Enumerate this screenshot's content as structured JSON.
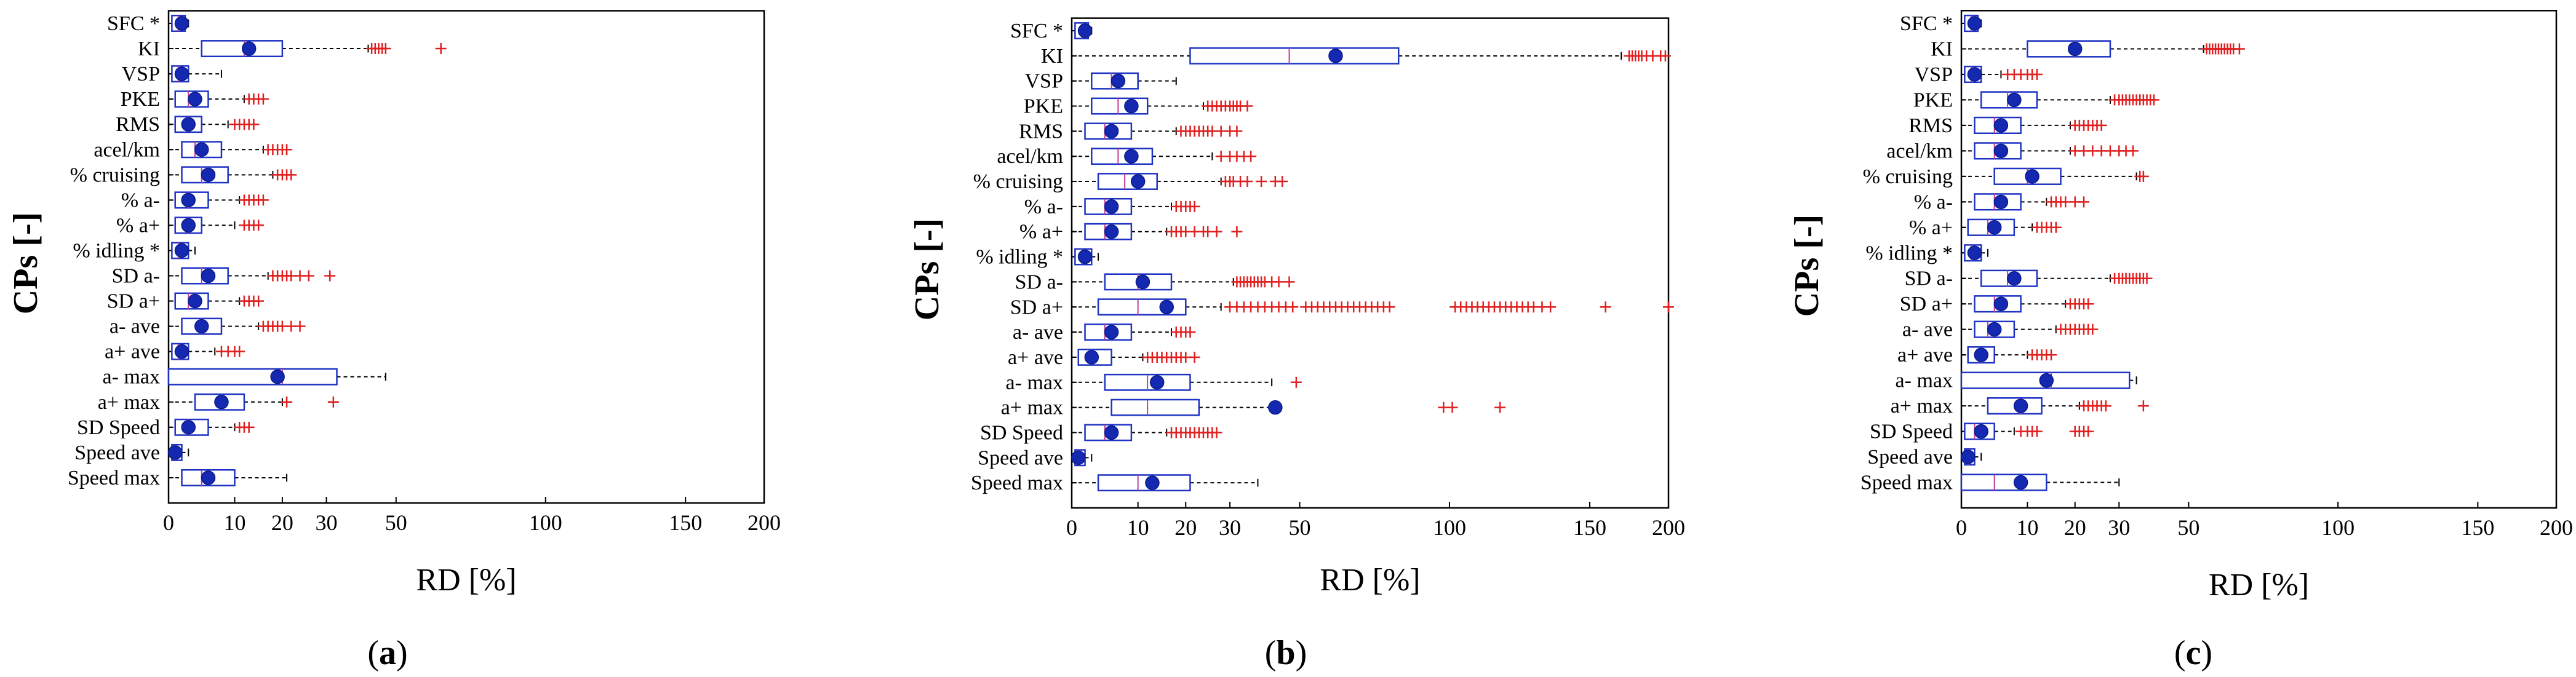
{
  "chart_data": [
    {
      "type": "boxplot",
      "panel_label": "a",
      "ylabel": "CPs [-]",
      "xlabel": "RD [%]",
      "xlim": [
        0,
        200
      ],
      "xticks": [
        0,
        10,
        20,
        30,
        50,
        100,
        150,
        200
      ],
      "categories": [
        "SFC *",
        "KI",
        "VSP",
        "PKE",
        "RMS",
        "acel/km",
        "% cruising",
        "% a-",
        "% a+",
        "% idling *",
        "SD a-",
        "SD a+",
        "a- ave",
        "a+ ave",
        "a- max",
        "a+ max",
        "SD Speed",
        "Speed ave",
        "Speed max"
      ],
      "boxes": [
        {
          "q1": 0.5,
          "med": 1.5,
          "mean": 2,
          "q3": 2.5,
          "wlo": 0,
          "whi": 3,
          "out": []
        },
        {
          "q1": 5,
          "med": 12,
          "mean": 13,
          "q3": 20,
          "wlo": 0,
          "whi": 42,
          "out": [
            43,
            44,
            45,
            46,
            47,
            65
          ]
        },
        {
          "q1": 0.5,
          "med": 1.5,
          "mean": 2,
          "q3": 3,
          "wlo": 0,
          "whi": 8,
          "out": []
        },
        {
          "q1": 1,
          "med": 3,
          "mean": 4,
          "q3": 6,
          "wlo": 0,
          "whi": 12,
          "out": [
            13,
            14,
            15,
            16
          ]
        },
        {
          "q1": 1,
          "med": 3,
          "mean": 3,
          "q3": 5,
          "wlo": 0,
          "whi": 9,
          "out": [
            10,
            11,
            12,
            13,
            14
          ]
        },
        {
          "q1": 2,
          "med": 4,
          "mean": 5,
          "q3": 8,
          "wlo": 0,
          "whi": 16,
          "out": [
            17,
            18,
            19,
            20,
            21
          ]
        },
        {
          "q1": 2,
          "med": 5,
          "mean": 6,
          "q3": 9,
          "wlo": 0,
          "whi": 18,
          "out": [
            19,
            20,
            21,
            22
          ]
        },
        {
          "q1": 1,
          "med": 3,
          "mean": 3,
          "q3": 6,
          "wlo": 0,
          "whi": 11,
          "out": [
            12,
            13,
            14,
            15,
            16
          ]
        },
        {
          "q1": 1,
          "med": 3,
          "mean": 3,
          "q3": 5,
          "wlo": 0,
          "whi": 10,
          "out": [
            12,
            13,
            14,
            15
          ]
        },
        {
          "q1": 0.5,
          "med": 1.5,
          "mean": 2,
          "q3": 3,
          "wlo": 0,
          "whi": 4,
          "out": []
        },
        {
          "q1": 2,
          "med": 5,
          "mean": 6,
          "q3": 9,
          "wlo": 0,
          "whi": 17,
          "out": [
            18,
            19,
            20,
            21,
            22,
            24,
            26,
            31
          ]
        },
        {
          "q1": 1,
          "med": 3,
          "mean": 4,
          "q3": 6,
          "wlo": 0,
          "whi": 11,
          "out": [
            12,
            13,
            14,
            15
          ]
        },
        {
          "q1": 2,
          "med": 5,
          "mean": 5,
          "q3": 8,
          "wlo": 0,
          "whi": 15,
          "out": [
            16,
            17,
            18,
            19,
            20,
            22,
            24
          ]
        },
        {
          "q1": 0.5,
          "med": 1.5,
          "mean": 2,
          "q3": 3,
          "wlo": 0,
          "whi": 7,
          "out": [
            8,
            9,
            10,
            11
          ]
        },
        {
          "q1": 0,
          "med": 20,
          "mean": 19,
          "q3": 33,
          "wlo": 0,
          "whi": 47,
          "out": []
        },
        {
          "q1": 4,
          "med": 8,
          "mean": 8,
          "q3": 12,
          "wlo": 1,
          "whi": 20,
          "out": [
            21,
            32
          ]
        },
        {
          "q1": 1,
          "med": 3,
          "mean": 3,
          "q3": 6,
          "wlo": 0,
          "whi": 10,
          "out": [
            11,
            12,
            13
          ]
        },
        {
          "q1": 0.5,
          "med": 1,
          "mean": 1,
          "q3": 2,
          "wlo": 0,
          "whi": 3,
          "out": []
        },
        {
          "q1": 2,
          "med": 5,
          "mean": 6,
          "q3": 10,
          "wlo": 0,
          "whi": 21,
          "out": []
        }
      ]
    },
    {
      "type": "boxplot",
      "panel_label": "b",
      "ylabel": "CPs [-]",
      "xlabel": "RD [%]",
      "xlim": [
        0,
        200
      ],
      "xticks": [
        0,
        10,
        20,
        30,
        50,
        100,
        150,
        200
      ],
      "categories": [
        "SFC *",
        "KI",
        "VSP",
        "PKE",
        "RMS",
        "acel/km",
        "% cruising",
        "% a-",
        "% a+",
        "% idling *",
        "SD a-",
        "SD a+",
        "a- ave",
        "a+ ave",
        "a- max",
        "a+ max",
        "SD Speed",
        "Speed ave",
        "Speed max"
      ],
      "boxes": [
        {
          "q1": 0.5,
          "med": 1.5,
          "mean": 2,
          "q3": 2.5,
          "wlo": 0,
          "whi": 3,
          "out": []
        },
        {
          "q1": 21,
          "med": 47,
          "mean": 62,
          "q3": 83,
          "wlo": 0,
          "whi": 170,
          "out": [
            175,
            177,
            179,
            181,
            183,
            186,
            190,
            195,
            198
          ]
        },
        {
          "q1": 3,
          "med": 6,
          "mean": 7,
          "q3": 10,
          "wlo": 0,
          "whi": 18,
          "out": []
        },
        {
          "q1": 3,
          "med": 7,
          "mean": 9,
          "q3": 12,
          "wlo": 0,
          "whi": 24,
          "out": [
            25,
            26,
            27,
            28,
            29,
            30,
            31,
            32,
            33,
            35
          ]
        },
        {
          "q1": 2,
          "med": 5,
          "mean": 6,
          "q3": 9,
          "wlo": 0,
          "whi": 18,
          "out": [
            19,
            20,
            21,
            22,
            23,
            24,
            25,
            26,
            28,
            30,
            32
          ]
        },
        {
          "q1": 3,
          "med": 7,
          "mean": 9,
          "q3": 13,
          "wlo": 0,
          "whi": 26,
          "out": [
            28,
            30,
            32,
            34,
            36
          ]
        },
        {
          "q1": 4,
          "med": 8,
          "mean": 10,
          "q3": 14,
          "wlo": 0,
          "whi": 28,
          "out": [
            29,
            30,
            31,
            33,
            35,
            39,
            43,
            45
          ]
        },
        {
          "q1": 2,
          "med": 5,
          "mean": 6,
          "q3": 9,
          "wlo": 0,
          "whi": 17,
          "out": [
            18,
            19,
            20,
            21,
            22
          ]
        },
        {
          "q1": 2,
          "med": 5,
          "mean": 6,
          "q3": 9,
          "wlo": 0,
          "whi": 16,
          "out": [
            17,
            18,
            19,
            20,
            22,
            24,
            25,
            27,
            32
          ]
        },
        {
          "q1": 0.5,
          "med": 1.5,
          "mean": 2,
          "q3": 3,
          "wlo": 0,
          "whi": 4,
          "out": []
        },
        {
          "q1": 5,
          "med": 10,
          "mean": 11,
          "q3": 17,
          "wlo": 0,
          "whi": 31,
          "out": [
            32,
            33,
            34,
            35,
            36,
            37,
            38,
            39,
            40,
            42,
            44,
            47
          ]
        },
        {
          "q1": 4,
          "med": 10,
          "mean": 16,
          "q3": 20,
          "wlo": 0,
          "whi": 28,
          "out": [
            30,
            32,
            34,
            36,
            38,
            40,
            42,
            44,
            46,
            48,
            52,
            54,
            56,
            58,
            60,
            62,
            64,
            66,
            68,
            70,
            72,
            74,
            76,
            78,
            80,
            102,
            104,
            106,
            108,
            110,
            112,
            114,
            116,
            118,
            120,
            122,
            124,
            126,
            128,
            130,
            133,
            136,
            160,
            200
          ]
        },
        {
          "q1": 2,
          "med": 5,
          "mean": 6,
          "q3": 9,
          "wlo": 0,
          "whi": 17,
          "out": [
            18,
            19,
            20,
            21
          ]
        },
        {
          "q1": 1,
          "med": 3,
          "mean": 3,
          "q3": 6,
          "wlo": 0,
          "whi": 11,
          "out": [
            12,
            13,
            14,
            15,
            16,
            17,
            18,
            19,
            20,
            22
          ]
        },
        {
          "q1": 5,
          "med": 12,
          "mean": 14,
          "q3": 21,
          "wlo": 0,
          "whi": 42,
          "out": [
            49
          ]
        },
        {
          "q1": 6,
          "med": 12,
          "mean": 43,
          "q3": 23,
          "wlo": 0,
          "whi": 42,
          "out": [
            98,
            101,
            118
          ]
        },
        {
          "q1": 2,
          "med": 5,
          "mean": 6,
          "q3": 9,
          "wlo": 0,
          "whi": 16,
          "out": [
            17,
            18,
            19,
            20,
            21,
            22,
            23,
            24,
            25,
            26,
            27
          ]
        },
        {
          "q1": 0.5,
          "med": 1,
          "mean": 1,
          "q3": 2,
          "wlo": 0,
          "whi": 3,
          "out": []
        },
        {
          "q1": 4,
          "med": 10,
          "mean": 13,
          "q3": 21,
          "wlo": 0,
          "whi": 38,
          "out": []
        }
      ]
    },
    {
      "type": "boxplot",
      "panel_label": "c",
      "ylabel": "CPs [-]",
      "xlabel": "RD [%]",
      "xlim": [
        0,
        200
      ],
      "xticks": [
        0,
        10,
        20,
        30,
        50,
        100,
        150,
        200
      ],
      "categories": [
        "SFC *",
        "KI",
        "VSP",
        "PKE",
        "RMS",
        "acel/km",
        "% cruising",
        "% a-",
        "% a+",
        "% idling *",
        "SD a-",
        "SD a+",
        "a- ave",
        "a+ ave",
        "a- max",
        "a+ max",
        "SD Speed",
        "Speed ave",
        "Speed max"
      ],
      "boxes": [
        {
          "q1": 0.5,
          "med": 1.5,
          "mean": 2,
          "q3": 2.5,
          "wlo": 0,
          "whi": 3,
          "out": []
        },
        {
          "q1": 10,
          "med": 20,
          "mean": 20,
          "q3": 28,
          "wlo": 0,
          "whi": 55,
          "out": [
            56,
            57,
            58,
            59,
            60,
            61,
            62,
            63,
            64,
            65,
            67
          ]
        },
        {
          "q1": 0.5,
          "med": 1.5,
          "mean": 2,
          "q3": 3,
          "wlo": 0,
          "whi": 6,
          "out": [
            7,
            8,
            9,
            10,
            11,
            12
          ]
        },
        {
          "q1": 3,
          "med": 7,
          "mean": 8,
          "q3": 12,
          "wlo": 0,
          "whi": 28,
          "out": [
            29,
            30,
            31,
            32,
            33,
            34,
            35,
            36,
            37,
            38,
            39,
            40
          ]
        },
        {
          "q1": 2,
          "med": 5,
          "mean": 6,
          "q3": 9,
          "wlo": 0,
          "whi": 19,
          "out": [
            20,
            21,
            22,
            23,
            24,
            25,
            26
          ]
        },
        {
          "q1": 2,
          "med": 5,
          "mean": 6,
          "q3": 9,
          "wlo": 0,
          "whi": 19,
          "out": [
            20,
            22,
            24,
            26,
            28,
            30,
            32,
            34
          ]
        },
        {
          "q1": 5,
          "med": 10,
          "mean": 11,
          "q3": 17,
          "wlo": 0,
          "whi": 35,
          "out": [
            36,
            37
          ]
        },
        {
          "q1": 2,
          "med": 5,
          "mean": 6,
          "q3": 9,
          "wlo": 0,
          "whi": 14,
          "out": [
            15,
            16,
            17,
            18,
            20,
            22
          ]
        },
        {
          "q1": 1,
          "med": 4,
          "mean": 5,
          "q3": 8,
          "wlo": 0,
          "whi": 11,
          "out": [
            12,
            13,
            14,
            15,
            16
          ]
        },
        {
          "q1": 0.5,
          "med": 1.5,
          "mean": 2,
          "q3": 3,
          "wlo": 0,
          "whi": 4,
          "out": []
        },
        {
          "q1": 3,
          "med": 7,
          "mean": 8,
          "q3": 12,
          "wlo": 0,
          "whi": 28,
          "out": [
            29,
            30,
            31,
            32,
            33,
            34,
            35,
            36,
            37,
            38
          ]
        },
        {
          "q1": 2,
          "med": 5,
          "mean": 6,
          "q3": 9,
          "wlo": 0,
          "whi": 18,
          "out": [
            19,
            20,
            21,
            22,
            23
          ]
        },
        {
          "q1": 2,
          "med": 4,
          "mean": 5,
          "q3": 8,
          "wlo": 0,
          "whi": 16,
          "out": [
            17,
            18,
            19,
            20,
            21,
            22,
            23,
            24
          ]
        },
        {
          "q1": 1,
          "med": 3,
          "mean": 3,
          "q3": 5,
          "wlo": 0,
          "whi": 10,
          "out": [
            11,
            12,
            13,
            14,
            15
          ]
        },
        {
          "q1": 0,
          "med": 15,
          "mean": 14,
          "q3": 33,
          "wlo": 0,
          "whi": 35,
          "out": []
        },
        {
          "q1": 4,
          "med": 9,
          "mean": 9,
          "q3": 13,
          "wlo": 1,
          "whi": 21,
          "out": [
            22,
            23,
            24,
            25,
            26,
            27,
            37
          ]
        },
        {
          "q1": 0.5,
          "med": 2,
          "mean": 3,
          "q3": 5,
          "wlo": 0,
          "whi": 8,
          "out": [
            9,
            10,
            11,
            12,
            20,
            21,
            22,
            23
          ]
        },
        {
          "q1": 0.5,
          "med": 1,
          "mean": 1,
          "q3": 2,
          "wlo": 0,
          "whi": 3,
          "out": []
        },
        {
          "q1": 0,
          "med": 5,
          "mean": 9,
          "q3": 14,
          "wlo": 0,
          "whi": 30,
          "out": []
        }
      ]
    }
  ],
  "colors": {
    "box": "#1f33c4",
    "mean_marker": "#1429b0",
    "median_line": "#c03a9a",
    "whisker": "#000000",
    "outlier": "#e02020",
    "axis": "#000000"
  }
}
